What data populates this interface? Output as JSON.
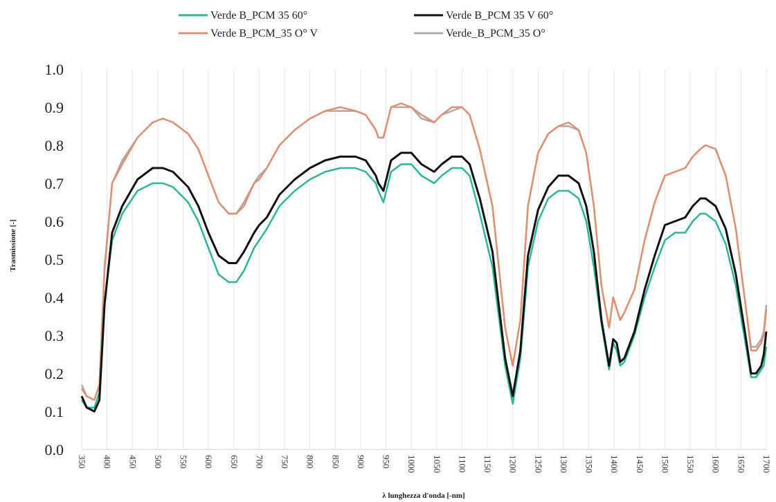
{
  "chart_data": {
    "type": "line",
    "xlabel": "λ lunghezza d'onda [-nm]",
    "ylabel": "Trasmissione [-]",
    "xlim": [
      350,
      1700
    ],
    "ylim": [
      0.0,
      1.0
    ],
    "grid": "vertical",
    "legend_position": "top",
    "x_ticks": [
      350,
      400,
      450,
      500,
      550,
      600,
      650,
      700,
      750,
      800,
      850,
      900,
      950,
      1000,
      1050,
      1100,
      1150,
      1200,
      1250,
      1300,
      1350,
      1400,
      1450,
      1500,
      1550,
      1600,
      1650,
      1700
    ],
    "y_ticks": [
      "0.0",
      "0.1",
      "0.2",
      "0.3",
      "0.4",
      "0.5",
      "0.6",
      "0.7",
      "0.8",
      "0.9",
      "1.0"
    ],
    "x": [
      350,
      360,
      375,
      385,
      395,
      410,
      430,
      460,
      490,
      510,
      530,
      560,
      580,
      600,
      620,
      640,
      655,
      670,
      690,
      700,
      715,
      740,
      770,
      800,
      830,
      860,
      890,
      910,
      930,
      935,
      945,
      960,
      980,
      1000,
      1020,
      1045,
      1060,
      1080,
      1100,
      1115,
      1135,
      1160,
      1185,
      1200,
      1215,
      1230,
      1250,
      1270,
      1290,
      1310,
      1330,
      1345,
      1360,
      1375,
      1390,
      1398,
      1405,
      1412,
      1420,
      1440,
      1460,
      1480,
      1500,
      1520,
      1540,
      1555,
      1570,
      1580,
      1600,
      1620,
      1640,
      1660,
      1670,
      1680,
      1690,
      1695,
      1700
    ],
    "series": [
      {
        "name": "Verde B_PCM 35 60°",
        "color": "#2bb696",
        "values": [
          0.13,
          0.11,
          0.11,
          0.15,
          0.39,
          0.55,
          0.62,
          0.68,
          0.7,
          0.7,
          0.69,
          0.65,
          0.6,
          0.53,
          0.46,
          0.44,
          0.44,
          0.47,
          0.53,
          0.55,
          0.58,
          0.64,
          0.68,
          0.71,
          0.73,
          0.74,
          0.74,
          0.73,
          0.7,
          0.68,
          0.65,
          0.73,
          0.75,
          0.75,
          0.72,
          0.7,
          0.72,
          0.74,
          0.74,
          0.72,
          0.62,
          0.48,
          0.22,
          0.12,
          0.24,
          0.48,
          0.6,
          0.66,
          0.68,
          0.68,
          0.66,
          0.6,
          0.48,
          0.33,
          0.21,
          0.28,
          0.26,
          0.22,
          0.23,
          0.3,
          0.4,
          0.48,
          0.55,
          0.57,
          0.57,
          0.6,
          0.62,
          0.62,
          0.6,
          0.54,
          0.43,
          0.27,
          0.19,
          0.19,
          0.21,
          0.22,
          0.27
        ]
      },
      {
        "name": "Verde B_PCM 35 V 60°",
        "color": "#111111",
        "values": [
          0.14,
          0.11,
          0.1,
          0.13,
          0.38,
          0.57,
          0.64,
          0.71,
          0.74,
          0.74,
          0.73,
          0.69,
          0.64,
          0.57,
          0.51,
          0.49,
          0.49,
          0.52,
          0.57,
          0.59,
          0.61,
          0.67,
          0.71,
          0.74,
          0.76,
          0.77,
          0.77,
          0.76,
          0.72,
          0.7,
          0.68,
          0.76,
          0.78,
          0.78,
          0.75,
          0.73,
          0.75,
          0.77,
          0.77,
          0.75,
          0.66,
          0.52,
          0.24,
          0.14,
          0.26,
          0.51,
          0.63,
          0.69,
          0.72,
          0.72,
          0.7,
          0.64,
          0.52,
          0.34,
          0.22,
          0.29,
          0.28,
          0.23,
          0.24,
          0.31,
          0.42,
          0.51,
          0.59,
          0.6,
          0.61,
          0.64,
          0.66,
          0.66,
          0.64,
          0.58,
          0.46,
          0.29,
          0.2,
          0.2,
          0.22,
          0.25,
          0.31
        ]
      },
      {
        "name": "Verde B_PCM_35 O° V",
        "color": "#e09070",
        "values": [
          0.16,
          0.14,
          0.13,
          0.17,
          0.47,
          0.7,
          0.75,
          0.82,
          0.86,
          0.87,
          0.86,
          0.83,
          0.79,
          0.72,
          0.65,
          0.62,
          0.62,
          0.64,
          0.7,
          0.71,
          0.74,
          0.8,
          0.84,
          0.87,
          0.89,
          0.9,
          0.89,
          0.88,
          0.84,
          0.82,
          0.82,
          0.9,
          0.91,
          0.9,
          0.88,
          0.86,
          0.88,
          0.9,
          0.9,
          0.88,
          0.79,
          0.64,
          0.32,
          0.22,
          0.34,
          0.64,
          0.78,
          0.83,
          0.85,
          0.86,
          0.84,
          0.78,
          0.64,
          0.43,
          0.32,
          0.4,
          0.37,
          0.34,
          0.36,
          0.42,
          0.55,
          0.65,
          0.72,
          0.73,
          0.74,
          0.77,
          0.79,
          0.8,
          0.79,
          0.72,
          0.58,
          0.37,
          0.26,
          0.26,
          0.28,
          0.3,
          0.37
        ]
      },
      {
        "name": "Verde_B_PCM_35  O°",
        "color": "#aaaaaa",
        "values": [
          0.17,
          0.14,
          0.13,
          0.17,
          0.48,
          0.7,
          0.76,
          0.82,
          0.86,
          0.87,
          0.86,
          0.83,
          0.79,
          0.72,
          0.65,
          0.62,
          0.62,
          0.65,
          0.7,
          0.72,
          0.74,
          0.8,
          0.84,
          0.87,
          0.89,
          0.89,
          0.89,
          0.88,
          0.84,
          0.82,
          0.82,
          0.9,
          0.9,
          0.9,
          0.87,
          0.86,
          0.88,
          0.89,
          0.9,
          0.88,
          0.79,
          0.64,
          0.32,
          0.22,
          0.34,
          0.64,
          0.78,
          0.83,
          0.85,
          0.85,
          0.84,
          0.78,
          0.64,
          0.43,
          0.32,
          0.4,
          0.37,
          0.34,
          0.36,
          0.42,
          0.55,
          0.65,
          0.72,
          0.73,
          0.74,
          0.77,
          0.79,
          0.8,
          0.79,
          0.72,
          0.58,
          0.37,
          0.27,
          0.27,
          0.29,
          0.31,
          0.38
        ]
      }
    ]
  }
}
